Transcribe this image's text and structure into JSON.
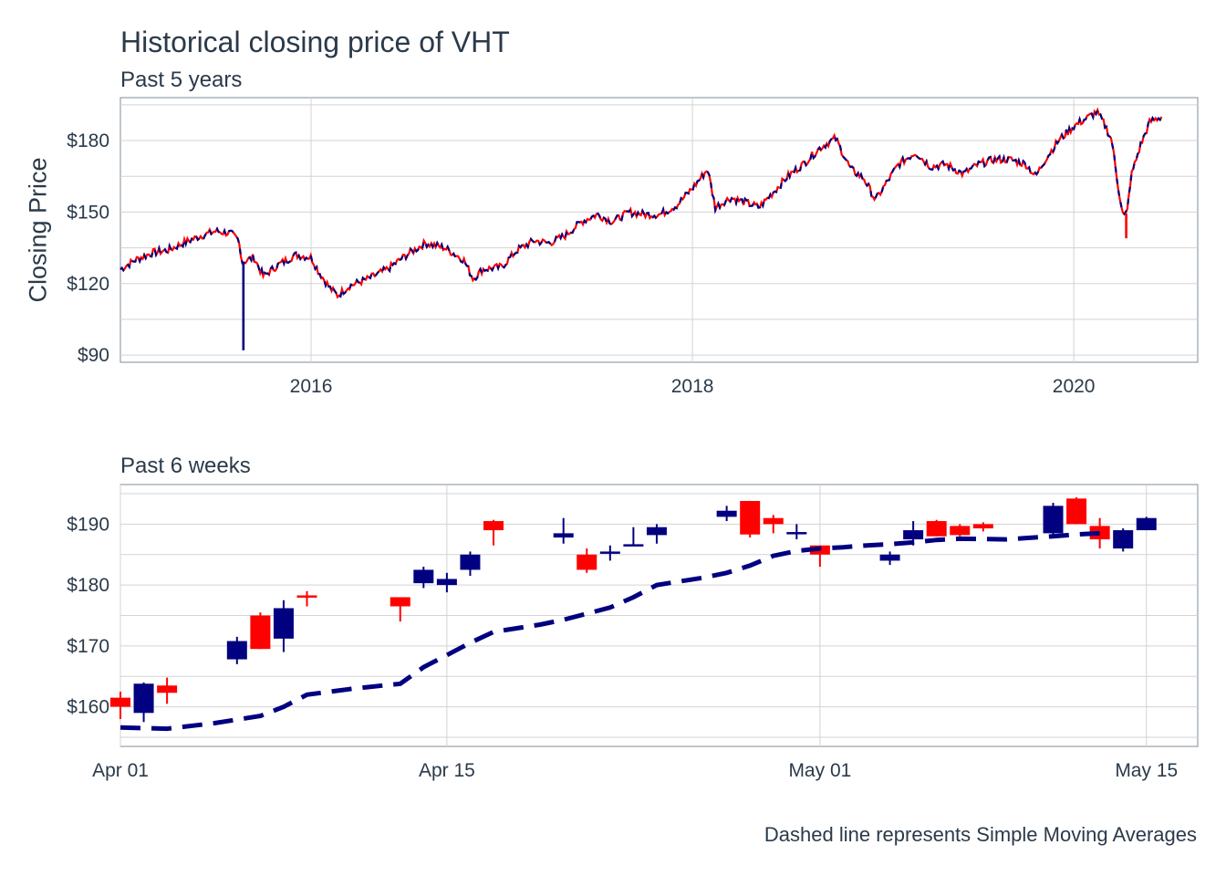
{
  "title": "Historical closing price of VHT",
  "caption": "Dashed line represents Simple Moving Averages",
  "colors": {
    "up": "#000080",
    "down": "#ff0000",
    "grid": "#d3d3d3",
    "text": "#2b3a4a"
  },
  "chart_data": [
    {
      "type": "line",
      "subtitle": "Past 5 years",
      "ylabel": "Closing Price",
      "xlim": [
        2015.0,
        2020.65
      ],
      "ylim": [
        87,
        198
      ],
      "y_ticks": [
        90,
        120,
        150,
        180
      ],
      "y_tick_labels": [
        "$90",
        "$120",
        "$150",
        "$180"
      ],
      "x_ticks": [
        2016,
        2018,
        2020
      ],
      "x_tick_labels": [
        "2016",
        "2018",
        "2020"
      ],
      "grid": true,
      "series_colors": [
        "#000080",
        "#ff0000"
      ],
      "points": [
        [
          2015.0,
          126
        ],
        [
          2015.08,
          130
        ],
        [
          2015.17,
          133
        ],
        [
          2015.25,
          134
        ],
        [
          2015.33,
          137
        ],
        [
          2015.42,
          140
        ],
        [
          2015.5,
          142
        ],
        [
          2015.58,
          141
        ],
        [
          2015.62,
          138
        ],
        [
          2015.64,
          129
        ],
        [
          2015.7,
          131
        ],
        [
          2015.75,
          123
        ],
        [
          2015.83,
          128
        ],
        [
          2015.92,
          132
        ],
        [
          2016.0,
          131
        ],
        [
          2016.04,
          125
        ],
        [
          2016.1,
          118
        ],
        [
          2016.14,
          115
        ],
        [
          2016.2,
          119
        ],
        [
          2016.3,
          122
        ],
        [
          2016.4,
          126
        ],
        [
          2016.5,
          132
        ],
        [
          2016.6,
          137
        ],
        [
          2016.7,
          135
        ],
        [
          2016.8,
          130
        ],
        [
          2016.85,
          122
        ],
        [
          2016.9,
          126
        ],
        [
          2017.0,
          127
        ],
        [
          2017.08,
          134
        ],
        [
          2017.17,
          138
        ],
        [
          2017.25,
          137
        ],
        [
          2017.33,
          140
        ],
        [
          2017.42,
          146
        ],
        [
          2017.5,
          149
        ],
        [
          2017.58,
          146
        ],
        [
          2017.67,
          150
        ],
        [
          2017.75,
          149
        ],
        [
          2017.83,
          149
        ],
        [
          2017.92,
          153
        ],
        [
          2018.0,
          160
        ],
        [
          2018.08,
          168
        ],
        [
          2018.12,
          152
        ],
        [
          2018.2,
          156
        ],
        [
          2018.28,
          154
        ],
        [
          2018.35,
          152
        ],
        [
          2018.42,
          158
        ],
        [
          2018.5,
          165
        ],
        [
          2018.58,
          170
        ],
        [
          2018.67,
          177
        ],
        [
          2018.75,
          181
        ],
        [
          2018.83,
          168
        ],
        [
          2018.9,
          164
        ],
        [
          2018.96,
          155
        ],
        [
          2019.0,
          160
        ],
        [
          2019.08,
          170
        ],
        [
          2019.17,
          175
        ],
        [
          2019.25,
          169
        ],
        [
          2019.33,
          170
        ],
        [
          2019.42,
          166
        ],
        [
          2019.5,
          170
        ],
        [
          2019.58,
          172
        ],
        [
          2019.67,
          172
        ],
        [
          2019.75,
          170
        ],
        [
          2019.8,
          165
        ],
        [
          2019.85,
          172
        ],
        [
          2019.92,
          180
        ],
        [
          2020.0,
          186
        ],
        [
          2020.08,
          190
        ],
        [
          2020.12,
          192
        ],
        [
          2020.16,
          187
        ],
        [
          2020.2,
          180
        ],
        [
          2020.23,
          162
        ],
        [
          2020.26,
          148
        ],
        [
          2020.28,
          150
        ],
        [
          2020.3,
          165
        ],
        [
          2020.35,
          178
        ],
        [
          2020.4,
          188
        ],
        [
          2020.46,
          190
        ]
      ],
      "outliers": [
        {
          "x": 2015.645,
          "y": 92,
          "series": 0
        },
        {
          "x": 2020.275,
          "y": 139,
          "series": 1
        }
      ]
    },
    {
      "type": "candlestick",
      "subtitle": "Past 6 weeks",
      "xlim": [
        0,
        46.2
      ],
      "ylim": [
        153.5,
        196.5
      ],
      "y_ticks": [
        160,
        170,
        180,
        190
      ],
      "y_tick_labels": [
        "$160",
        "$170",
        "$180",
        "$190"
      ],
      "x_ticks": [
        0,
        14,
        30,
        44
      ],
      "x_tick_labels": [
        "Apr 01",
        "Apr 15",
        "May 01",
        "May 15"
      ],
      "grid": true,
      "candles": [
        {
          "day": 0,
          "open": 161.5,
          "close": 160.0,
          "high": 162.5,
          "low": 158.0
        },
        {
          "day": 1,
          "open": 159.0,
          "close": 163.8,
          "high": 164.0,
          "low": 157.5
        },
        {
          "day": 2,
          "open": 163.5,
          "close": 162.3,
          "high": 164.8,
          "low": 160.5
        },
        {
          "day": 5,
          "open": 167.8,
          "close": 170.8,
          "high": 171.5,
          "low": 167.0
        },
        {
          "day": 6,
          "open": 175.0,
          "close": 169.5,
          "high": 175.5,
          "low": 169.5
        },
        {
          "day": 7,
          "open": 171.2,
          "close": 176.2,
          "high": 177.5,
          "low": 169.0
        },
        {
          "day": 8,
          "open": 178.3,
          "close": 178.0,
          "high": 179.0,
          "low": 176.5
        },
        {
          "day": 12,
          "open": 178.0,
          "close": 176.5,
          "high": 178.0,
          "low": 174.0
        },
        {
          "day": 13,
          "open": 180.3,
          "close": 182.5,
          "high": 183.0,
          "low": 179.5
        },
        {
          "day": 14,
          "open": 180.0,
          "close": 181.0,
          "high": 182.0,
          "low": 178.8
        },
        {
          "day": 15,
          "open": 182.5,
          "close": 185.0,
          "high": 185.5,
          "low": 181.5
        },
        {
          "day": 16,
          "open": 190.5,
          "close": 189.0,
          "high": 190.7,
          "low": 186.5
        },
        {
          "day": 19,
          "open": 187.8,
          "close": 188.5,
          "high": 191.0,
          "low": 186.8
        },
        {
          "day": 20,
          "open": 185.0,
          "close": 182.5,
          "high": 186.0,
          "low": 182.0
        },
        {
          "day": 21,
          "open": 185.5,
          "close": 185.5,
          "high": 186.5,
          "low": 184.0
        },
        {
          "day": 22,
          "open": 186.7,
          "close": 186.7,
          "high": 189.5,
          "low": 186.5
        },
        {
          "day": 23,
          "open": 188.2,
          "close": 189.5,
          "high": 190.0,
          "low": 186.8
        },
        {
          "day": 26,
          "open": 191.2,
          "close": 192.2,
          "high": 193.0,
          "low": 190.5
        },
        {
          "day": 27,
          "open": 193.8,
          "close": 188.3,
          "high": 193.8,
          "low": 187.8
        },
        {
          "day": 28,
          "open": 191.0,
          "close": 190.0,
          "high": 191.5,
          "low": 188.5
        },
        {
          "day": 29,
          "open": 188.7,
          "close": 188.7,
          "high": 190.0,
          "low": 187.5
        },
        {
          "day": 30,
          "open": 186.5,
          "close": 185.0,
          "high": 186.5,
          "low": 183.0
        },
        {
          "day": 33,
          "open": 184.0,
          "close": 185.0,
          "high": 185.5,
          "low": 183.3
        },
        {
          "day": 34,
          "open": 187.5,
          "close": 189.0,
          "high": 190.5,
          "low": 186.5
        },
        {
          "day": 35,
          "open": 190.5,
          "close": 188.0,
          "high": 190.7,
          "low": 188.0
        },
        {
          "day": 36,
          "open": 189.7,
          "close": 188.2,
          "high": 190.0,
          "low": 188.0
        },
        {
          "day": 37,
          "open": 190.0,
          "close": 189.3,
          "high": 190.3,
          "low": 188.8
        },
        {
          "day": 40,
          "open": 188.5,
          "close": 193.0,
          "high": 193.5,
          "low": 187.8
        },
        {
          "day": 41,
          "open": 194.2,
          "close": 190.0,
          "high": 194.4,
          "low": 190.0
        },
        {
          "day": 42,
          "open": 189.7,
          "close": 187.5,
          "high": 191.0,
          "low": 186.0
        },
        {
          "day": 43,
          "open": 186.0,
          "close": 189.0,
          "high": 189.3,
          "low": 185.5
        },
        {
          "day": 44,
          "open": 189.0,
          "close": 191.0,
          "high": 191.2,
          "low": 189.0
        }
      ],
      "sma": [
        [
          0,
          156.6
        ],
        [
          2,
          156.4
        ],
        [
          4,
          157.3
        ],
        [
          6,
          158.5
        ],
        [
          7,
          160.0
        ],
        [
          8,
          162.0
        ],
        [
          10,
          163.0
        ],
        [
          12,
          163.8
        ],
        [
          13,
          166.5
        ],
        [
          14,
          168.5
        ],
        [
          15,
          170.5
        ],
        [
          16,
          172.3
        ],
        [
          18,
          173.5
        ],
        [
          19,
          174.3
        ],
        [
          21,
          176.3
        ],
        [
          22,
          178.0
        ],
        [
          23,
          180.0
        ],
        [
          25,
          181.2
        ],
        [
          26,
          182.0
        ],
        [
          27,
          183.2
        ],
        [
          28,
          184.8
        ],
        [
          29,
          185.6
        ],
        [
          30,
          186.0
        ],
        [
          31,
          186.2
        ],
        [
          32,
          186.5
        ],
        [
          33,
          186.7
        ],
        [
          34,
          187.0
        ],
        [
          35,
          187.4
        ],
        [
          36,
          187.6
        ],
        [
          38,
          187.5
        ],
        [
          40,
          188.0
        ],
        [
          41,
          188.3
        ],
        [
          42,
          188.5
        ]
      ]
    }
  ]
}
